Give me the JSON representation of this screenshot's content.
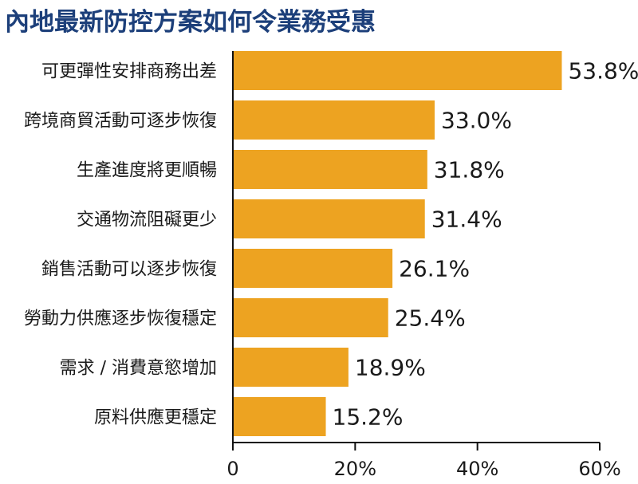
{
  "chart_data": {
    "type": "bar",
    "orientation": "horizontal",
    "title": "內地最新防控方案如何令業務受惠",
    "categories": [
      "可更彈性安排商務出差",
      "跨境商貿活動可逐步恢復",
      "生產進度將更順暢",
      "交通物流阻礙更少",
      "銷售活動可以逐步恢復",
      "勞動力供應逐步恢復穩定",
      "需求 / 消費意慾增加",
      "原料供應更穩定"
    ],
    "values": [
      53.8,
      33.0,
      31.8,
      31.4,
      26.1,
      25.4,
      18.9,
      15.2
    ],
    "value_labels": [
      "53.8%",
      "33.0%",
      "31.8%",
      "31.4%",
      "26.1%",
      "25.4%",
      "18.9%",
      "15.2%"
    ],
    "xlim": [
      0,
      60
    ],
    "xticks": [
      0,
      20,
      40,
      60
    ],
    "xtick_labels": [
      "0",
      "20%",
      "40%",
      "60%"
    ],
    "bar_color": "#eda321",
    "title_color": "#1c3f7a",
    "grid": false
  }
}
